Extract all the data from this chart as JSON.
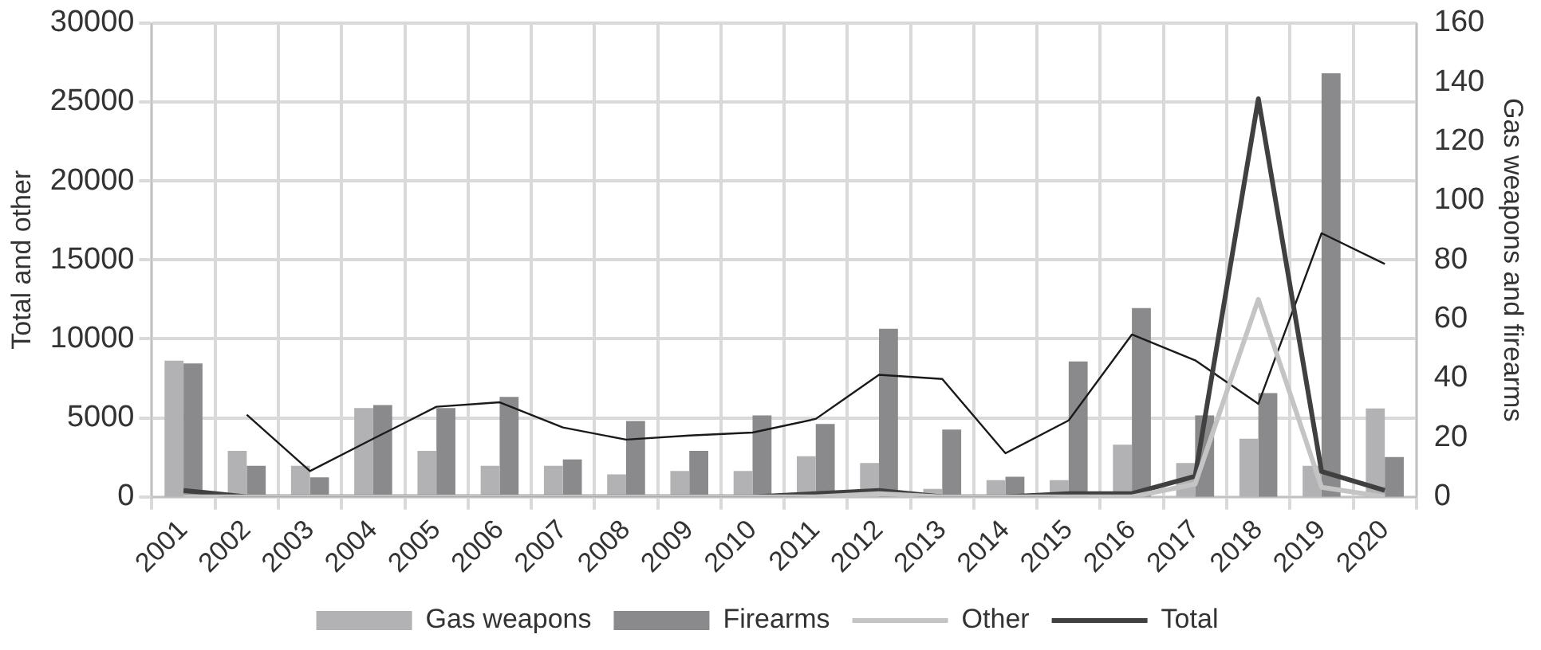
{
  "chart_data": {
    "type": "bar",
    "ylabel": "Total and other",
    "y2label": "Gas weapons and firearms",
    "categories": [
      "2001",
      "2002",
      "2003",
      "2004",
      "2005",
      "2006",
      "2007",
      "2008",
      "2009",
      "2010",
      "2011",
      "2012",
      "2013",
      "2014",
      "2015",
      "2016",
      "2017",
      "2018",
      "2019",
      "2020"
    ],
    "series": [
      {
        "name": "Gas weapons",
        "axis": "y2",
        "color": "#b2b2b4",
        "values": [
          46,
          15.5,
          10.5,
          30,
          15.5,
          10.5,
          10.5,
          7.6,
          8.7,
          8.7,
          13.7,
          11.4,
          2.7,
          5.6,
          5.6,
          17.6,
          11.4,
          19.6,
          10.5,
          29.8
        ]
      },
      {
        "name": "Firearms",
        "axis": "y2",
        "color": "#8a8a8c",
        "values": [
          45,
          10.5,
          6.6,
          31,
          30,
          33.7,
          12.6,
          25.6,
          15.5,
          27.5,
          24.6,
          56.7,
          22.7,
          6.8,
          45.7,
          63.7,
          27.5,
          35,
          143,
          13.4
        ]
      },
      {
        "name": "Other",
        "type": "line",
        "color": "#c4c4c4",
        "values": [
          0,
          0,
          0,
          0,
          0,
          0,
          0,
          0,
          0,
          0,
          0,
          200,
          0,
          0,
          0,
          0,
          800,
          12500,
          600,
          0
        ]
      },
      {
        "name": "Total",
        "type": "line",
        "color": "#404040",
        "values": [
          400,
          0,
          0,
          0,
          0,
          0,
          0,
          0,
          0,
          0,
          200,
          400,
          0,
          0,
          200,
          200,
          1300,
          25200,
          1600,
          400
        ]
      },
      {
        "type": "line",
        "axis": "y2",
        "color": "#1a1a1a",
        "values": [
          null,
          27.7,
          8.7,
          19.6,
          30.4,
          31.9,
          23.4,
          19.3,
          20.7,
          21.7,
          26.3,
          41.2,
          39.8,
          14.7,
          25.8,
          54.8,
          46.1,
          31.4,
          89,
          78.6
        ]
      }
    ],
    "ylim": [
      0,
      30000
    ],
    "yticks": [
      0,
      5000,
      10000,
      15000,
      20000,
      25000,
      30000
    ],
    "y2lim": [
      0,
      160
    ],
    "y2ticks": [
      0,
      20,
      40,
      60,
      80,
      100,
      120,
      140,
      160
    ],
    "grid": true,
    "legend": "bottom"
  }
}
